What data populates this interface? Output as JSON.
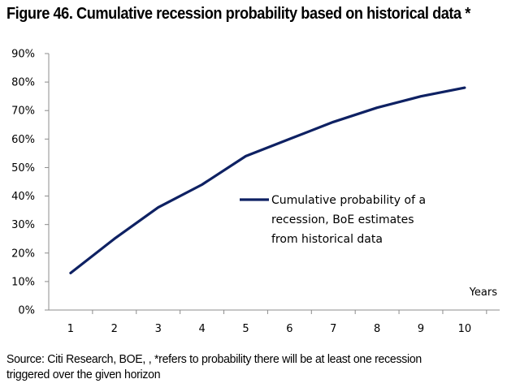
{
  "title": "Figure 46. Cumulative recession probability based on historical data *",
  "source_lines": [
    "Source: Citi Research, BOE, , *refers to probability there will be at least one recession",
    "triggered over the given horizon"
  ],
  "chart_data": {
    "type": "line",
    "x": [
      1,
      2,
      3,
      4,
      5,
      6,
      7,
      8,
      9,
      10
    ],
    "x_tick_labels": [
      "1",
      "2",
      "3",
      "4",
      "5",
      "6",
      "7",
      "8",
      "9",
      "10"
    ],
    "xlabel": "Years",
    "ylim": [
      0,
      90
    ],
    "y_ticks": [
      0,
      10,
      20,
      30,
      40,
      50,
      60,
      70,
      80,
      90
    ],
    "y_tick_labels": [
      "0%",
      "10%",
      "20%",
      "30%",
      "40%",
      "50%",
      "60%",
      "70%",
      "80%",
      "90%"
    ],
    "grid": false,
    "legend_position": "center-right",
    "series": [
      {
        "name": "Cumulative probability of a recession, BoE estimates from historical data",
        "legend_lines": [
          "Cumulative probability of a",
          "recession, BoE estimates",
          "from historical data"
        ],
        "color": "#0e2163",
        "values": [
          13,
          25,
          36,
          44,
          54,
          60,
          66,
          71,
          75,
          78
        ]
      }
    ]
  }
}
